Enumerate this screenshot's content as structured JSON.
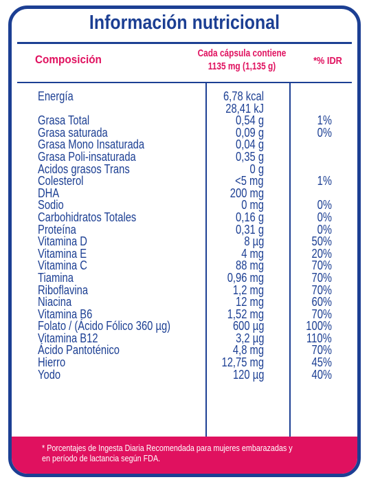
{
  "title": "Información nutricional",
  "header": {
    "composition": "Composición",
    "per_capsule_line1": "Cada cápsula contiene",
    "per_capsule_line2": "1135 mg (1,135 g)",
    "idr": "*% IDR"
  },
  "rows": [
    {
      "name": "Energía",
      "value": "6,78 kcal",
      "idr": ""
    },
    {
      "name": "",
      "value": "28,41 kJ",
      "idr": ""
    },
    {
      "name": "Grasa Total",
      "value": "0,54 g",
      "idr": "1%"
    },
    {
      "name": "Grasa saturada",
      "value": "0,09 g",
      "idr": "0%"
    },
    {
      "name": "Grasa Mono Insaturada",
      "value": "0,04 g",
      "idr": ""
    },
    {
      "name": "Grasa Poli-insaturada",
      "value": "0,35 g",
      "idr": ""
    },
    {
      "name": "Acidos grasos Trans",
      "value": "0 g",
      "idr": ""
    },
    {
      "name": "Colesterol",
      "value": "<5 mg",
      "idr": "1%"
    },
    {
      "name": "DHA",
      "value": "200 mg",
      "idr": ""
    },
    {
      "name": "Sodio",
      "value": "0 mg",
      "idr": "0%"
    },
    {
      "name": "Carbohidratos Totales",
      "value": "0,16 g",
      "idr": "0%"
    },
    {
      "name": "Proteína",
      "value": "0,31 g",
      "idr": "0%"
    },
    {
      "name": "Vitamina D",
      "value": "8 µg",
      "idr": "50%"
    },
    {
      "name": "Vitamina E",
      "value": "4 mg",
      "idr": "20%"
    },
    {
      "name": "Vitamina C",
      "value": "88 mg",
      "idr": "70%"
    },
    {
      "name": "Tiamina",
      "value": "0,96 mg",
      "idr": "70%"
    },
    {
      "name": "Riboflavina",
      "value": "1,2 mg",
      "idr": "70%"
    },
    {
      "name": "Niacina",
      "value": "12 mg",
      "idr": "60%"
    },
    {
      "name": "Vitamina B6",
      "value": "1,52 mg",
      "idr": "70%"
    },
    {
      "name": "Folato / (Ácido Fólico 360 µg)",
      "value": "600 µg",
      "idr": "100%"
    },
    {
      "name": "Vitamina B12",
      "value": "3,2 µg",
      "idr": "110%"
    },
    {
      "name": "Ácido Pantoténico",
      "value": "4,8 mg",
      "idr": "70%"
    },
    {
      "name": "Hierro",
      "value": "12,75 mg",
      "idr": "45%"
    },
    {
      "name": "Yodo",
      "value": "120 µg",
      "idr": "40%"
    }
  ],
  "footnote_line1": "* Porcentajes de Ingesta Diaria Recomendada para mujeres embarazadas y",
  "footnote_line2": "en período de lactancia según FDA.",
  "colors": {
    "primary": "#1c3f93",
    "accent": "#e0115f",
    "background": "#ffffff"
  }
}
